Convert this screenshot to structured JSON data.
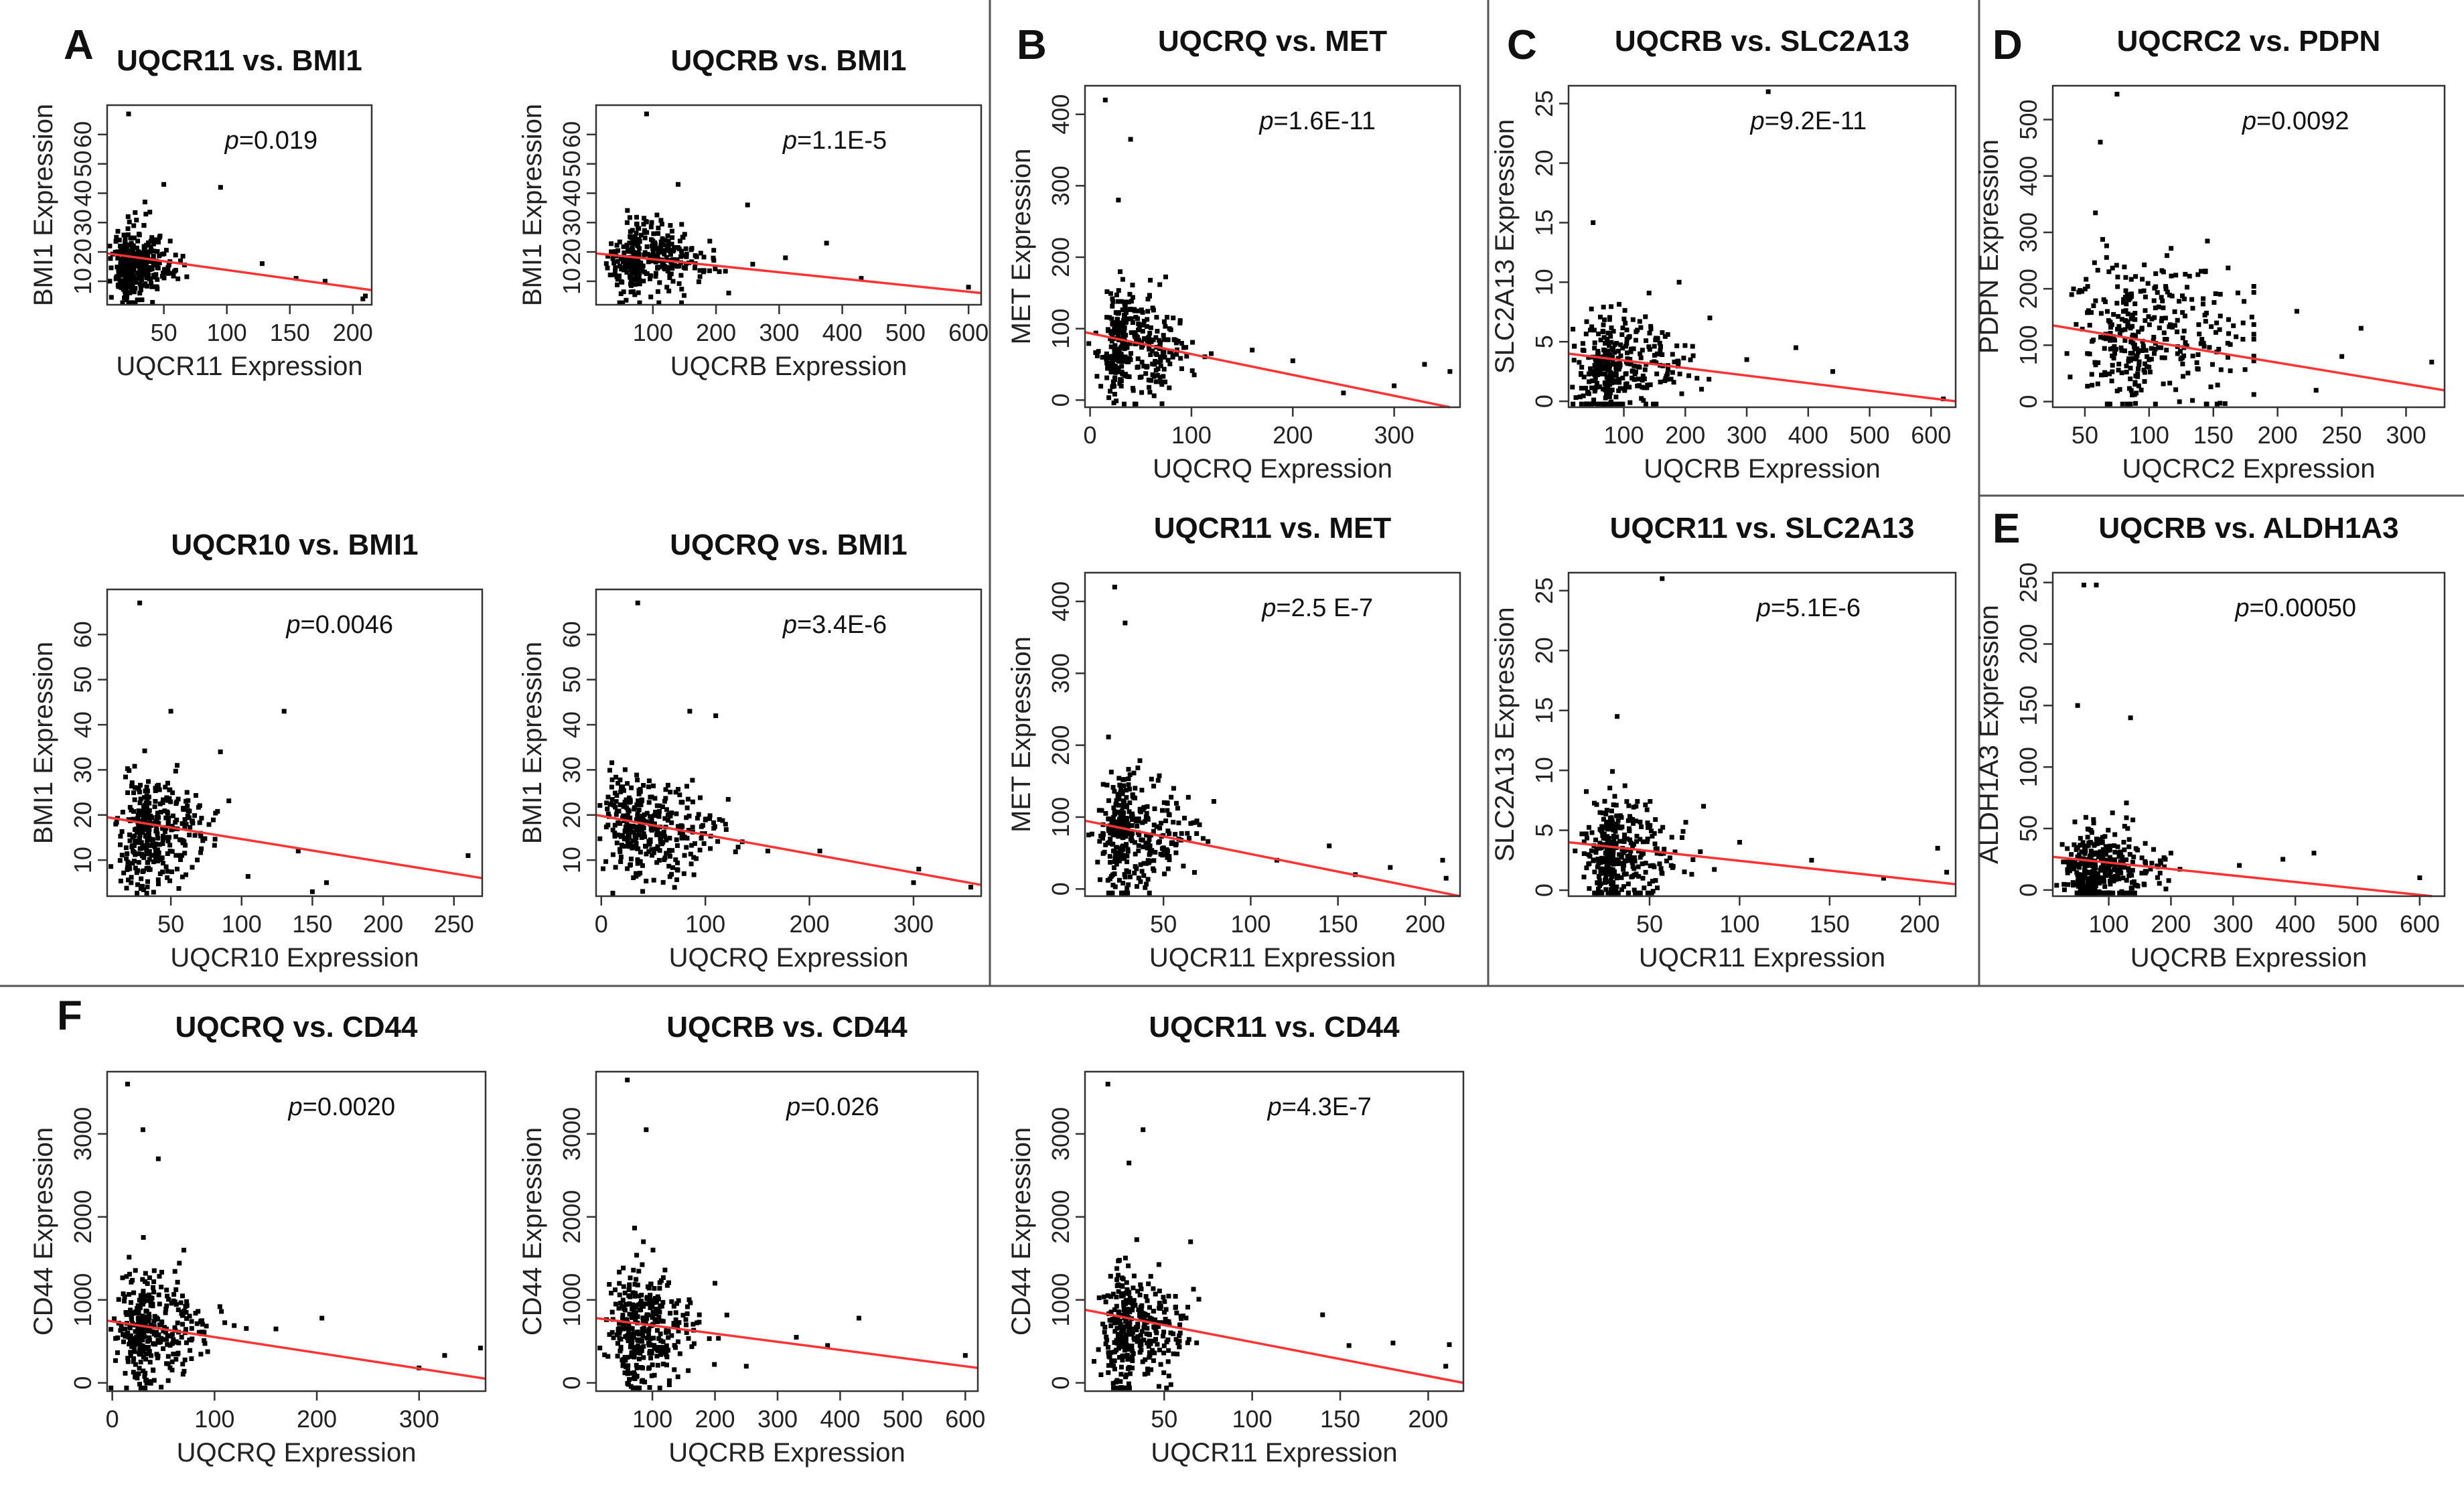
{
  "chart_data": [
    {
      "id": "A1",
      "panel": "A",
      "type": "scatter",
      "title": "UQCR11 vs. BMI1",
      "xlabel": "UQCR11 Expression",
      "ylabel": "BMI1 Expression",
      "xlim": [
        5,
        215
      ],
      "ylim": [
        2,
        70
      ],
      "xticks": [
        50,
        100,
        150,
        200
      ],
      "yticks": [
        10,
        20,
        30,
        40,
        50,
        60
      ],
      "p_prefix": "p",
      "p_value": "=0.019",
      "fit": [
        [
          5,
          19.5
        ],
        [
          215,
          7.0
        ]
      ],
      "cloud": {
        "xc": 25,
        "yc": 16,
        "xs": 12,
        "ys": 6,
        "n": 340,
        "seed": 11
      },
      "outliers": [
        [
          22,
          67
        ],
        [
          95,
          42
        ],
        [
          50,
          43
        ],
        [
          128,
          16
        ],
        [
          155,
          11
        ],
        [
          178,
          10
        ],
        [
          210,
          5
        ],
        [
          208,
          4
        ],
        [
          35,
          37
        ]
      ]
    },
    {
      "id": "A2",
      "panel": "A",
      "type": "scatter",
      "title": "UQCRB vs. BMI1",
      "xlabel": "UQCRB Expression",
      "ylabel": "BMI1 Expression",
      "xlim": [
        10,
        620
      ],
      "ylim": [
        2,
        70
      ],
      "xticks": [
        100,
        200,
        300,
        400,
        500,
        600
      ],
      "yticks": [
        10,
        20,
        30,
        40,
        50,
        60
      ],
      "p_prefix": "p",
      "p_value": "=1.1E-5",
      "fit": [
        [
          10,
          19.5
        ],
        [
          620,
          6.0
        ]
      ],
      "cloud": {
        "xc": 80,
        "yc": 17,
        "xs": 35,
        "ys": 6,
        "n": 340,
        "seed": 23
      },
      "outliers": [
        [
          90,
          67
        ],
        [
          310,
          18
        ],
        [
          375,
          23
        ],
        [
          430,
          11
        ],
        [
          600,
          8
        ],
        [
          250,
          36
        ],
        [
          140,
          43
        ],
        [
          220,
          6
        ]
      ]
    },
    {
      "id": "A3",
      "panel": "A",
      "type": "scatter",
      "title": "UQCR10 vs. BMI1",
      "xlabel": "UQCR10 Expression",
      "ylabel": "BMI1 Expression",
      "xlim": [
        5,
        270
      ],
      "ylim": [
        2,
        70
      ],
      "xticks": [
        50,
        100,
        150,
        200,
        250
      ],
      "yticks": [
        10,
        20,
        30,
        40,
        50,
        60
      ],
      "p_prefix": "p",
      "p_value": "=0.0046",
      "fit": [
        [
          5,
          19.5
        ],
        [
          270,
          6.0
        ]
      ],
      "cloud": {
        "xc": 35,
        "yc": 16,
        "xs": 16,
        "ys": 6,
        "n": 340,
        "seed": 37
      },
      "outliers": [
        [
          28,
          67
        ],
        [
          130,
          43
        ],
        [
          260,
          11
        ],
        [
          140,
          12
        ],
        [
          160,
          5
        ],
        [
          150,
          3
        ],
        [
          85,
          34
        ],
        [
          50,
          43
        ]
      ]
    },
    {
      "id": "A4",
      "panel": "A",
      "type": "scatter",
      "title": "UQCRQ vs. BMI1",
      "xlabel": "UQCRQ Expression",
      "ylabel": "BMI1 Expression",
      "xlim": [
        -5,
        365
      ],
      "ylim": [
        2,
        70
      ],
      "xticks": [
        0,
        100,
        200,
        300
      ],
      "yticks": [
        10,
        20,
        30,
        40,
        50,
        60
      ],
      "p_prefix": "p",
      "p_value": "=3.4E-6",
      "fit": [
        [
          -5,
          20.0
        ],
        [
          365,
          4.5
        ]
      ],
      "cloud": {
        "xc": 40,
        "yc": 17,
        "xs": 28,
        "ys": 6,
        "n": 340,
        "seed": 41
      },
      "outliers": [
        [
          35,
          67
        ],
        [
          210,
          12
        ],
        [
          305,
          8
        ],
        [
          355,
          4
        ],
        [
          300,
          5
        ],
        [
          110,
          42
        ],
        [
          85,
          43
        ],
        [
          160,
          12
        ]
      ]
    },
    {
      "id": "B1",
      "panel": "B",
      "type": "scatter",
      "title": "UQCRQ vs. MET",
      "xlabel": "UQCRQ Expression",
      "ylabel": "MET Expression",
      "xlim": [
        -5,
        365
      ],
      "ylim": [
        -10,
        440
      ],
      "xticks": [
        0,
        100,
        200,
        300
      ],
      "yticks": [
        0,
        100,
        200,
        300,
        400
      ],
      "p_prefix": "p",
      "p_value": "=1.6E-11",
      "fit": [
        [
          -5,
          95
        ],
        [
          355,
          -10
        ]
      ],
      "cloud": {
        "xc": 35,
        "yc": 75,
        "xs": 22,
        "ys": 40,
        "n": 340,
        "seed": 53
      },
      "outliers": [
        [
          15,
          420
        ],
        [
          40,
          365
        ],
        [
          28,
          280
        ],
        [
          160,
          70
        ],
        [
          200,
          55
        ],
        [
          300,
          20
        ],
        [
          330,
          50
        ],
        [
          355,
          40
        ],
        [
          250,
          10
        ]
      ]
    },
    {
      "id": "B2",
      "panel": "B",
      "type": "scatter",
      "title": "UQCR11 vs. MET",
      "xlabel": "UQCR11 Expression",
      "ylabel": "MET Expression",
      "xlim": [
        5,
        220
      ],
      "ylim": [
        -10,
        440
      ],
      "xticks": [
        50,
        100,
        150,
        200
      ],
      "yticks": [
        0,
        100,
        200,
        300,
        400
      ],
      "p_prefix": "p",
      "p_value": "=2.5 E-7",
      "fit": [
        [
          5,
          95
        ],
        [
          220,
          -10
        ]
      ],
      "cloud": {
        "xc": 30,
        "yc": 75,
        "xs": 12,
        "ys": 40,
        "n": 340,
        "seed": 67
      },
      "outliers": [
        [
          22,
          420
        ],
        [
          28,
          370
        ],
        [
          145,
          60
        ],
        [
          160,
          20
        ],
        [
          180,
          30
        ],
        [
          210,
          40
        ],
        [
          212,
          15
        ],
        [
          115,
          40
        ]
      ]
    },
    {
      "id": "C1",
      "panel": "C",
      "type": "scatter",
      "title": "UQCRB vs. SLC2A13",
      "xlabel": "UQCRB Expression",
      "ylabel": "SLC2A13 Expression",
      "xlim": [
        10,
        640
      ],
      "ylim": [
        -0.5,
        26.5
      ],
      "xticks": [
        100,
        200,
        300,
        400,
        500,
        600
      ],
      "yticks": [
        0,
        5,
        10,
        15,
        20,
        25
      ],
      "p_prefix": "p",
      "p_value": "=9.2E-11",
      "fit": [
        [
          10,
          4.0
        ],
        [
          640,
          0.0
        ]
      ],
      "cloud": {
        "xc": 80,
        "yc": 3.0,
        "xs": 40,
        "ys": 2.2,
        "n": 340,
        "seed": 71
      },
      "outliers": [
        [
          335,
          26
        ],
        [
          190,
          10
        ],
        [
          380,
          4.5
        ],
        [
          440,
          2.5
        ],
        [
          620,
          0.2
        ],
        [
          300,
          3.5
        ],
        [
          50,
          15
        ],
        [
          240,
          7
        ]
      ]
    },
    {
      "id": "C2",
      "panel": "C",
      "type": "scatter",
      "title": "UQCR11 vs. SLC2A13",
      "xlabel": "UQCR11 Expression",
      "ylabel": "SLC2A13 Expression",
      "xlim": [
        5,
        220
      ],
      "ylim": [
        -0.5,
        26.5
      ],
      "xticks": [
        50,
        100,
        150,
        200
      ],
      "yticks": [
        0,
        5,
        10,
        15,
        20,
        25
      ],
      "p_prefix": "p",
      "p_value": "=5.1E-6",
      "fit": [
        [
          5,
          4.0
        ],
        [
          220,
          0.5
        ]
      ],
      "cloud": {
        "xc": 30,
        "yc": 3.0,
        "xs": 12,
        "ys": 2.2,
        "n": 340,
        "seed": 83
      },
      "outliers": [
        [
          57,
          26
        ],
        [
          32,
          14.5
        ],
        [
          80,
          7
        ],
        [
          140,
          2.5
        ],
        [
          180,
          1.0
        ],
        [
          210,
          3.5
        ],
        [
          215,
          1.5
        ],
        [
          100,
          4
        ]
      ]
    },
    {
      "id": "D1",
      "panel": "D",
      "type": "scatter",
      "title": "UQCRC2 vs. PDPN",
      "xlabel": "UQCRC2 Expression",
      "ylabel": "PDPN Expression",
      "xlim": [
        25,
        330
      ],
      "ylim": [
        -10,
        560
      ],
      "xticks": [
        50,
        100,
        150,
        200,
        250,
        300
      ],
      "yticks": [
        0,
        100,
        200,
        300,
        400,
        500
      ],
      "p_prefix": "p",
      "p_value": "=0.0092",
      "fit": [
        [
          25,
          135
        ],
        [
          330,
          20
        ]
      ],
      "cloud": {
        "xc": 90,
        "yc": 120,
        "xs": 35,
        "ys": 70,
        "n": 340,
        "seed": 97
      },
      "outliers": [
        [
          75,
          545
        ],
        [
          62,
          460
        ],
        [
          215,
          160
        ],
        [
          265,
          130
        ],
        [
          320,
          70
        ],
        [
          250,
          80
        ],
        [
          230,
          20
        ],
        [
          180,
          150
        ]
      ]
    },
    {
      "id": "E1",
      "panel": "E",
      "type": "scatter",
      "title": "UQCRB vs. ALDH1A3",
      "xlabel": "UQCRB Expression",
      "ylabel": "ALDH1A3 Expression",
      "xlim": [
        10,
        640
      ],
      "ylim": [
        -5,
        258
      ],
      "xticks": [
        100,
        200,
        300,
        400,
        500,
        600
      ],
      "yticks": [
        0,
        50,
        100,
        150,
        200,
        250
      ],
      "p_prefix": "p",
      "p_value": "=0.00050",
      "fit": [
        [
          10,
          27
        ],
        [
          620,
          -5
        ]
      ],
      "cloud": {
        "xc": 80,
        "yc": 18,
        "xs": 35,
        "ys": 16,
        "n": 340,
        "seed": 101
      },
      "outliers": [
        [
          60,
          248
        ],
        [
          80,
          248
        ],
        [
          135,
          140
        ],
        [
          380,
          25
        ],
        [
          430,
          30
        ],
        [
          600,
          10
        ],
        [
          310,
          20
        ],
        [
          200,
          30
        ],
        [
          50,
          150
        ]
      ]
    },
    {
      "id": "F1",
      "panel": "F",
      "type": "scatter",
      "title": "UQCRQ vs. CD44",
      "xlabel": "UQCRQ Expression",
      "ylabel": "CD44 Expression",
      "xlim": [
        -5,
        365
      ],
      "ylim": [
        -100,
        3750
      ],
      "xticks": [
        0,
        100,
        200,
        300
      ],
      "yticks": [
        0,
        1000,
        2000,
        3000
      ],
      "p_prefix": "p",
      "p_value": "=0.0020",
      "fit": [
        [
          -5,
          750
        ],
        [
          365,
          50
        ]
      ],
      "cloud": {
        "xc": 35,
        "yc": 650,
        "xs": 22,
        "ys": 350,
        "n": 340,
        "seed": 113
      },
      "outliers": [
        [
          15,
          3600
        ],
        [
          30,
          3050
        ],
        [
          45,
          2700
        ],
        [
          160,
          650
        ],
        [
          205,
          780
        ],
        [
          300,
          180
        ],
        [
          325,
          330
        ],
        [
          360,
          420
        ],
        [
          70,
          1600
        ]
      ]
    },
    {
      "id": "F2",
      "panel": "F",
      "type": "scatter",
      "title": "UQCRB vs. CD44",
      "xlabel": "UQCRB Expression",
      "ylabel": "CD44 Expression",
      "xlim": [
        10,
        620
      ],
      "ylim": [
        -100,
        3750
      ],
      "xticks": [
        100,
        200,
        300,
        400,
        500,
        600
      ],
      "yticks": [
        0,
        1000,
        2000,
        3000
      ],
      "p_prefix": "p",
      "p_value": "=0.026",
      "fit": [
        [
          10,
          780
        ],
        [
          620,
          180
        ]
      ],
      "cloud": {
        "xc": 80,
        "yc": 650,
        "xs": 35,
        "ys": 350,
        "n": 340,
        "seed": 127
      },
      "outliers": [
        [
          60,
          3650
        ],
        [
          90,
          3050
        ],
        [
          330,
          550
        ],
        [
          380,
          450
        ],
        [
          430,
          780
        ],
        [
          600,
          330
        ],
        [
          250,
          200
        ],
        [
          200,
          1200
        ]
      ]
    },
    {
      "id": "F3",
      "panel": "F",
      "type": "scatter",
      "title": "UQCR11 vs. CD44",
      "xlabel": "UQCR11 Expression",
      "ylabel": "CD44 Expression",
      "xlim": [
        5,
        220
      ],
      "ylim": [
        -100,
        3750
      ],
      "xticks": [
        50,
        100,
        150,
        200
      ],
      "yticks": [
        0,
        1000,
        2000,
        3000
      ],
      "p_prefix": "p",
      "p_value": "=4.3E-7",
      "fit": [
        [
          5,
          880
        ],
        [
          220,
          0
        ]
      ],
      "cloud": {
        "xc": 30,
        "yc": 650,
        "xs": 12,
        "ys": 350,
        "n": 340,
        "seed": 131
      },
      "outliers": [
        [
          18,
          3600
        ],
        [
          38,
          3050
        ],
        [
          30,
          2650
        ],
        [
          140,
          820
        ],
        [
          155,
          450
        ],
        [
          180,
          480
        ],
        [
          212,
          460
        ],
        [
          210,
          200
        ],
        [
          65,
          1700
        ]
      ]
    }
  ],
  "panel_letters": {
    "A": "A",
    "B": "B",
    "C": "C",
    "D": "D",
    "E": "E",
    "F": "F"
  }
}
